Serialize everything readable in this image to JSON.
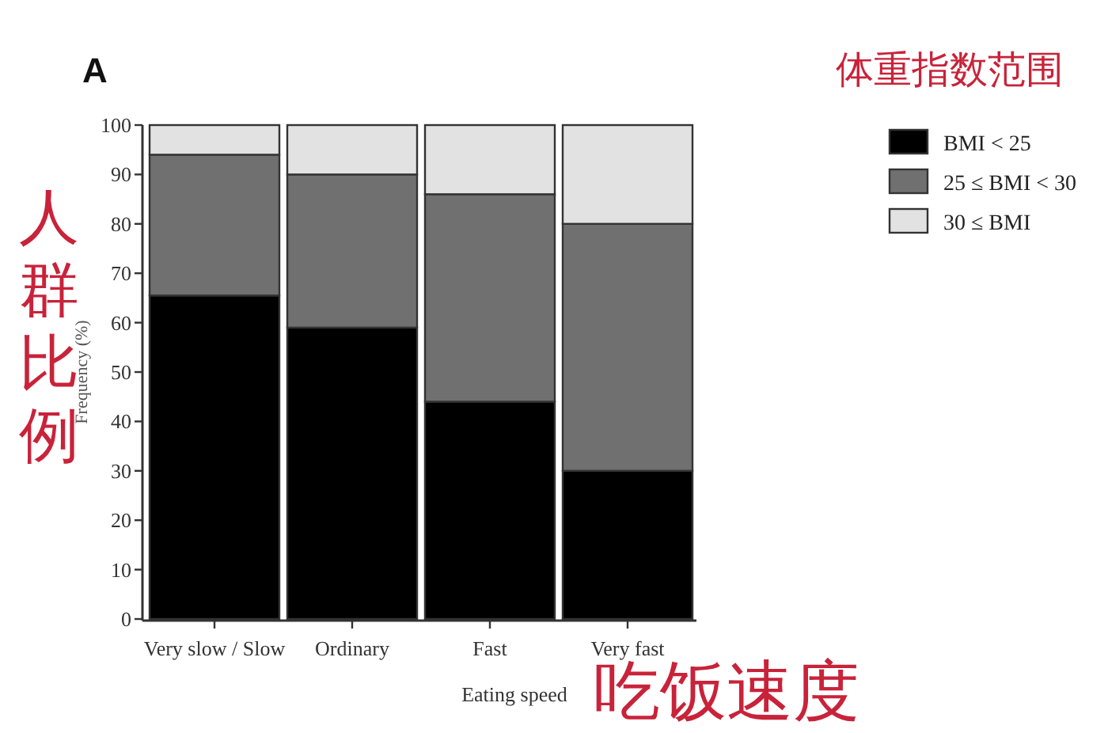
{
  "chart_data": {
    "type": "bar",
    "stacked": true,
    "title": "A",
    "legend_title": "体重指数范围",
    "xlabel": "Eating speed",
    "ylabel": "Frequency (%)",
    "annotations": [
      "人群比例",
      "吃饭速度"
    ],
    "categories": [
      "Very slow / Slow",
      "Ordinary",
      "Fast",
      "Very fast"
    ],
    "series": [
      {
        "name": "BMI < 25",
        "color": "#000000",
        "values": [
          65.5,
          59,
          44,
          30
        ]
      },
      {
        "name": "25 ≤ BMI < 30",
        "color": "#707070",
        "values": [
          28.5,
          31,
          42,
          50
        ]
      },
      {
        "name": "30 ≤ BMI",
        "color": "#e2e2e2",
        "values": [
          6,
          10,
          14,
          20
        ]
      }
    ],
    "ylim": [
      0,
      100
    ],
    "yticks": [
      0,
      10,
      20,
      30,
      40,
      50,
      60,
      70,
      80,
      90,
      100
    ],
    "grid": false,
    "legend": "top right"
  }
}
